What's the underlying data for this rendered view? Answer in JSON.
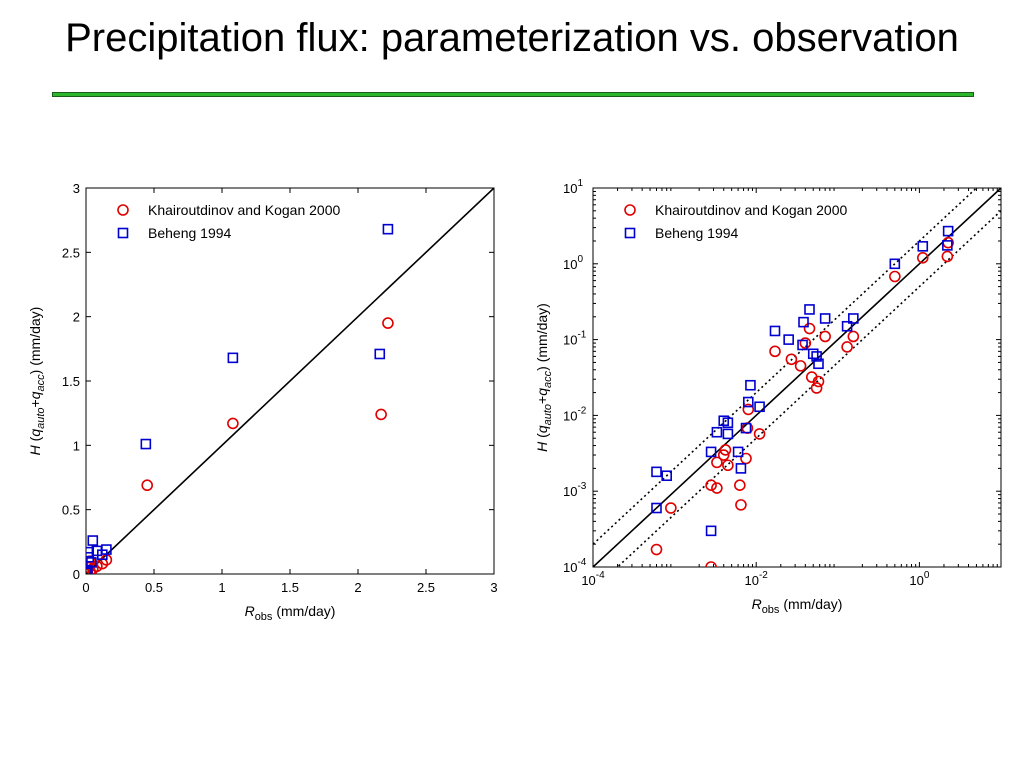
{
  "title": "Precipitation flux: parameterization vs. observation",
  "colors": {
    "rule": "#2db52d",
    "series1": "#e00000",
    "series2": "#0000d0",
    "axis": "#000000"
  },
  "chart_data": [
    {
      "type": "scatter",
      "scale": "linear",
      "xlim": [
        0,
        3
      ],
      "ylim": [
        0,
        3
      ],
      "xticks": [
        0,
        0.5,
        1,
        1.5,
        2,
        2.5,
        3
      ],
      "xtick_labels": [
        "0",
        "0.5",
        "1",
        "1.5",
        "2",
        "2.5",
        "3"
      ],
      "yticks": [
        0,
        0.5,
        1,
        1.5,
        2,
        2.5,
        3
      ],
      "ytick_labels": [
        "0",
        "0.5",
        "1",
        "1.5",
        "2",
        "2.5",
        "3"
      ],
      "xlabel": {
        "main": "R",
        "sub": "obs",
        "rest": " (mm/day)"
      },
      "ylabel": {
        "p1": "H (q",
        "s1": "auto",
        "p2": "+q",
        "s2": "acc",
        "p3": ") (mm/day)"
      },
      "reference_lines": [
        "1:1"
      ],
      "legend_position": "top-left",
      "series": [
        {
          "name": "Khairoutdinov and Kogan 2000",
          "marker": "circle",
          "color": "#e00000",
          "points": [
            [
              0.45,
              0.69
            ],
            [
              1.08,
              1.17
            ],
            [
              2.17,
              1.24
            ],
            [
              2.22,
              1.95
            ],
            [
              0.15,
              0.11
            ],
            [
              0.12,
              0.08
            ],
            [
              0.08,
              0.06
            ],
            [
              0.05,
              0.04
            ],
            [
              0.03,
              0.02
            ],
            [
              0.02,
              0.05
            ],
            [
              0.01,
              0.01
            ],
            [
              0.03,
              0.1
            ],
            [
              0.0,
              0.0
            ]
          ]
        },
        {
          "name": "Beheng 1994",
          "marker": "square",
          "color": "#0000d0",
          "points": [
            [
              0.44,
              1.01
            ],
            [
              1.08,
              1.68
            ],
            [
              2.16,
              1.71
            ],
            [
              2.22,
              2.68
            ],
            [
              0.15,
              0.19
            ],
            [
              0.12,
              0.15
            ],
            [
              0.08,
              0.18
            ],
            [
              0.05,
              0.26
            ],
            [
              0.02,
              0.17
            ],
            [
              0.02,
              0.13
            ],
            [
              0.04,
              0.09
            ],
            [
              0.01,
              0.03
            ],
            [
              0.0,
              0.01
            ]
          ]
        }
      ]
    },
    {
      "type": "scatter",
      "scale": "log",
      "xlim": [
        0.0001,
        10
      ],
      "ylim": [
        0.0001,
        10
      ],
      "xticks": [
        0.0001,
        0.01,
        1
      ],
      "xtick_labels": [
        [
          "10",
          "-4"
        ],
        [
          "10",
          "-2"
        ],
        [
          "10",
          "0"
        ]
      ],
      "yticks": [
        0.0001,
        0.001,
        0.01,
        0.1,
        1,
        10
      ],
      "ytick_labels": [
        [
          "10",
          "-4"
        ],
        [
          "10",
          "-3"
        ],
        [
          "10",
          "-2"
        ],
        [
          "10",
          "-1"
        ],
        [
          "10",
          "0"
        ],
        [
          "10",
          "1"
        ]
      ],
      "xlabel": {
        "main": "R",
        "sub": "obs",
        "rest": " (mm/day)"
      },
      "ylabel": {
        "p1": "H (q",
        "s1": "auto",
        "p2": "+q",
        "s2": "acc",
        "p3": ") (mm/day)"
      },
      "reference_lines": [
        "1:1",
        "2x",
        "0.5x"
      ],
      "legend_position": "top-left",
      "series": [
        {
          "name": "Khairoutdinov and Kogan 2000",
          "marker": "circle",
          "color": "#e00000",
          "points": [
            [
              0.0006,
              0.00017
            ],
            [
              0.0009,
              0.0006
            ],
            [
              0.0028,
              0.0001
            ],
            [
              0.0028,
              0.0012
            ],
            [
              0.0033,
              0.0011
            ],
            [
              0.0033,
              0.0024
            ],
            [
              0.004,
              0.003
            ],
            [
              0.0042,
              0.0035
            ],
            [
              0.0045,
              0.0022
            ],
            [
              0.0063,
              0.0012
            ],
            [
              0.0065,
              0.00066
            ],
            [
              0.0075,
              0.0027
            ],
            [
              0.0078,
              0.0068
            ],
            [
              0.008,
              0.012
            ],
            [
              0.011,
              0.0057
            ],
            [
              0.017,
              0.07
            ],
            [
              0.027,
              0.055
            ],
            [
              0.035,
              0.045
            ],
            [
              0.04,
              0.09
            ],
            [
              0.045,
              0.14
            ],
            [
              0.048,
              0.032
            ],
            [
              0.055,
              0.023
            ],
            [
              0.058,
              0.028
            ],
            [
              0.07,
              0.11
            ],
            [
              0.13,
              0.08
            ],
            [
              0.155,
              0.11
            ],
            [
              0.5,
              0.68
            ],
            [
              1.1,
              1.2
            ],
            [
              2.2,
              1.25
            ],
            [
              2.25,
              1.9
            ]
          ]
        },
        {
          "name": "Beheng 1994",
          "marker": "square",
          "color": "#0000d0",
          "points": [
            [
              0.0006,
              0.0006
            ],
            [
              0.0006,
              0.0018
            ],
            [
              0.0008,
              0.0016
            ],
            [
              0.0028,
              0.0003
            ],
            [
              0.0028,
              0.0033
            ],
            [
              0.0033,
              0.006
            ],
            [
              0.004,
              0.0085
            ],
            [
              0.0045,
              0.008
            ],
            [
              0.0045,
              0.0057
            ],
            [
              0.006,
              0.0033
            ],
            [
              0.0065,
              0.002
            ],
            [
              0.0075,
              0.0068
            ],
            [
              0.008,
              0.015
            ],
            [
              0.0085,
              0.025
            ],
            [
              0.011,
              0.013
            ],
            [
              0.017,
              0.13
            ],
            [
              0.025,
              0.1
            ],
            [
              0.037,
              0.085
            ],
            [
              0.038,
              0.17
            ],
            [
              0.045,
              0.25
            ],
            [
              0.05,
              0.065
            ],
            [
              0.055,
              0.06
            ],
            [
              0.058,
              0.048
            ],
            [
              0.07,
              0.19
            ],
            [
              0.13,
              0.15
            ],
            [
              0.155,
              0.19
            ],
            [
              0.5,
              1.0
            ],
            [
              1.1,
              1.7
            ],
            [
              2.2,
              1.75
            ],
            [
              2.25,
              2.7
            ]
          ]
        }
      ]
    }
  ]
}
